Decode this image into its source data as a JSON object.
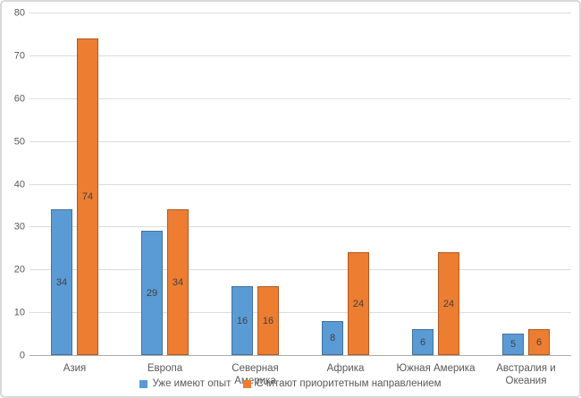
{
  "chart_data": {
    "type": "bar",
    "title": "",
    "xlabel": "",
    "ylabel": "",
    "categories": [
      "Азия",
      "Европа",
      "Северная Америка",
      "Африка",
      "Южная Америка",
      "Австралия и Океания"
    ],
    "series": [
      {
        "name": "Уже имеют опыт",
        "color": "#5b9bd5",
        "border_color": "#41719c",
        "values": [
          34,
          29,
          16,
          8,
          6,
          5
        ]
      },
      {
        "name": "Считают приоритетным направлением",
        "color": "#ed7d31",
        "border_color": "#ae5a21",
        "values": [
          74,
          34,
          16,
          24,
          24,
          6
        ]
      }
    ],
    "ylim": [
      0,
      80
    ],
    "ytick_step": 10,
    "yticks": [
      0,
      10,
      20,
      30,
      40,
      50,
      60,
      70,
      80
    ],
    "grid": true,
    "gridline_color": "#dcdcdc",
    "axis_line_color": "#acacac",
    "data_labels": "inside-center",
    "data_label_color": "#404040",
    "legend_position": "bottom"
  }
}
